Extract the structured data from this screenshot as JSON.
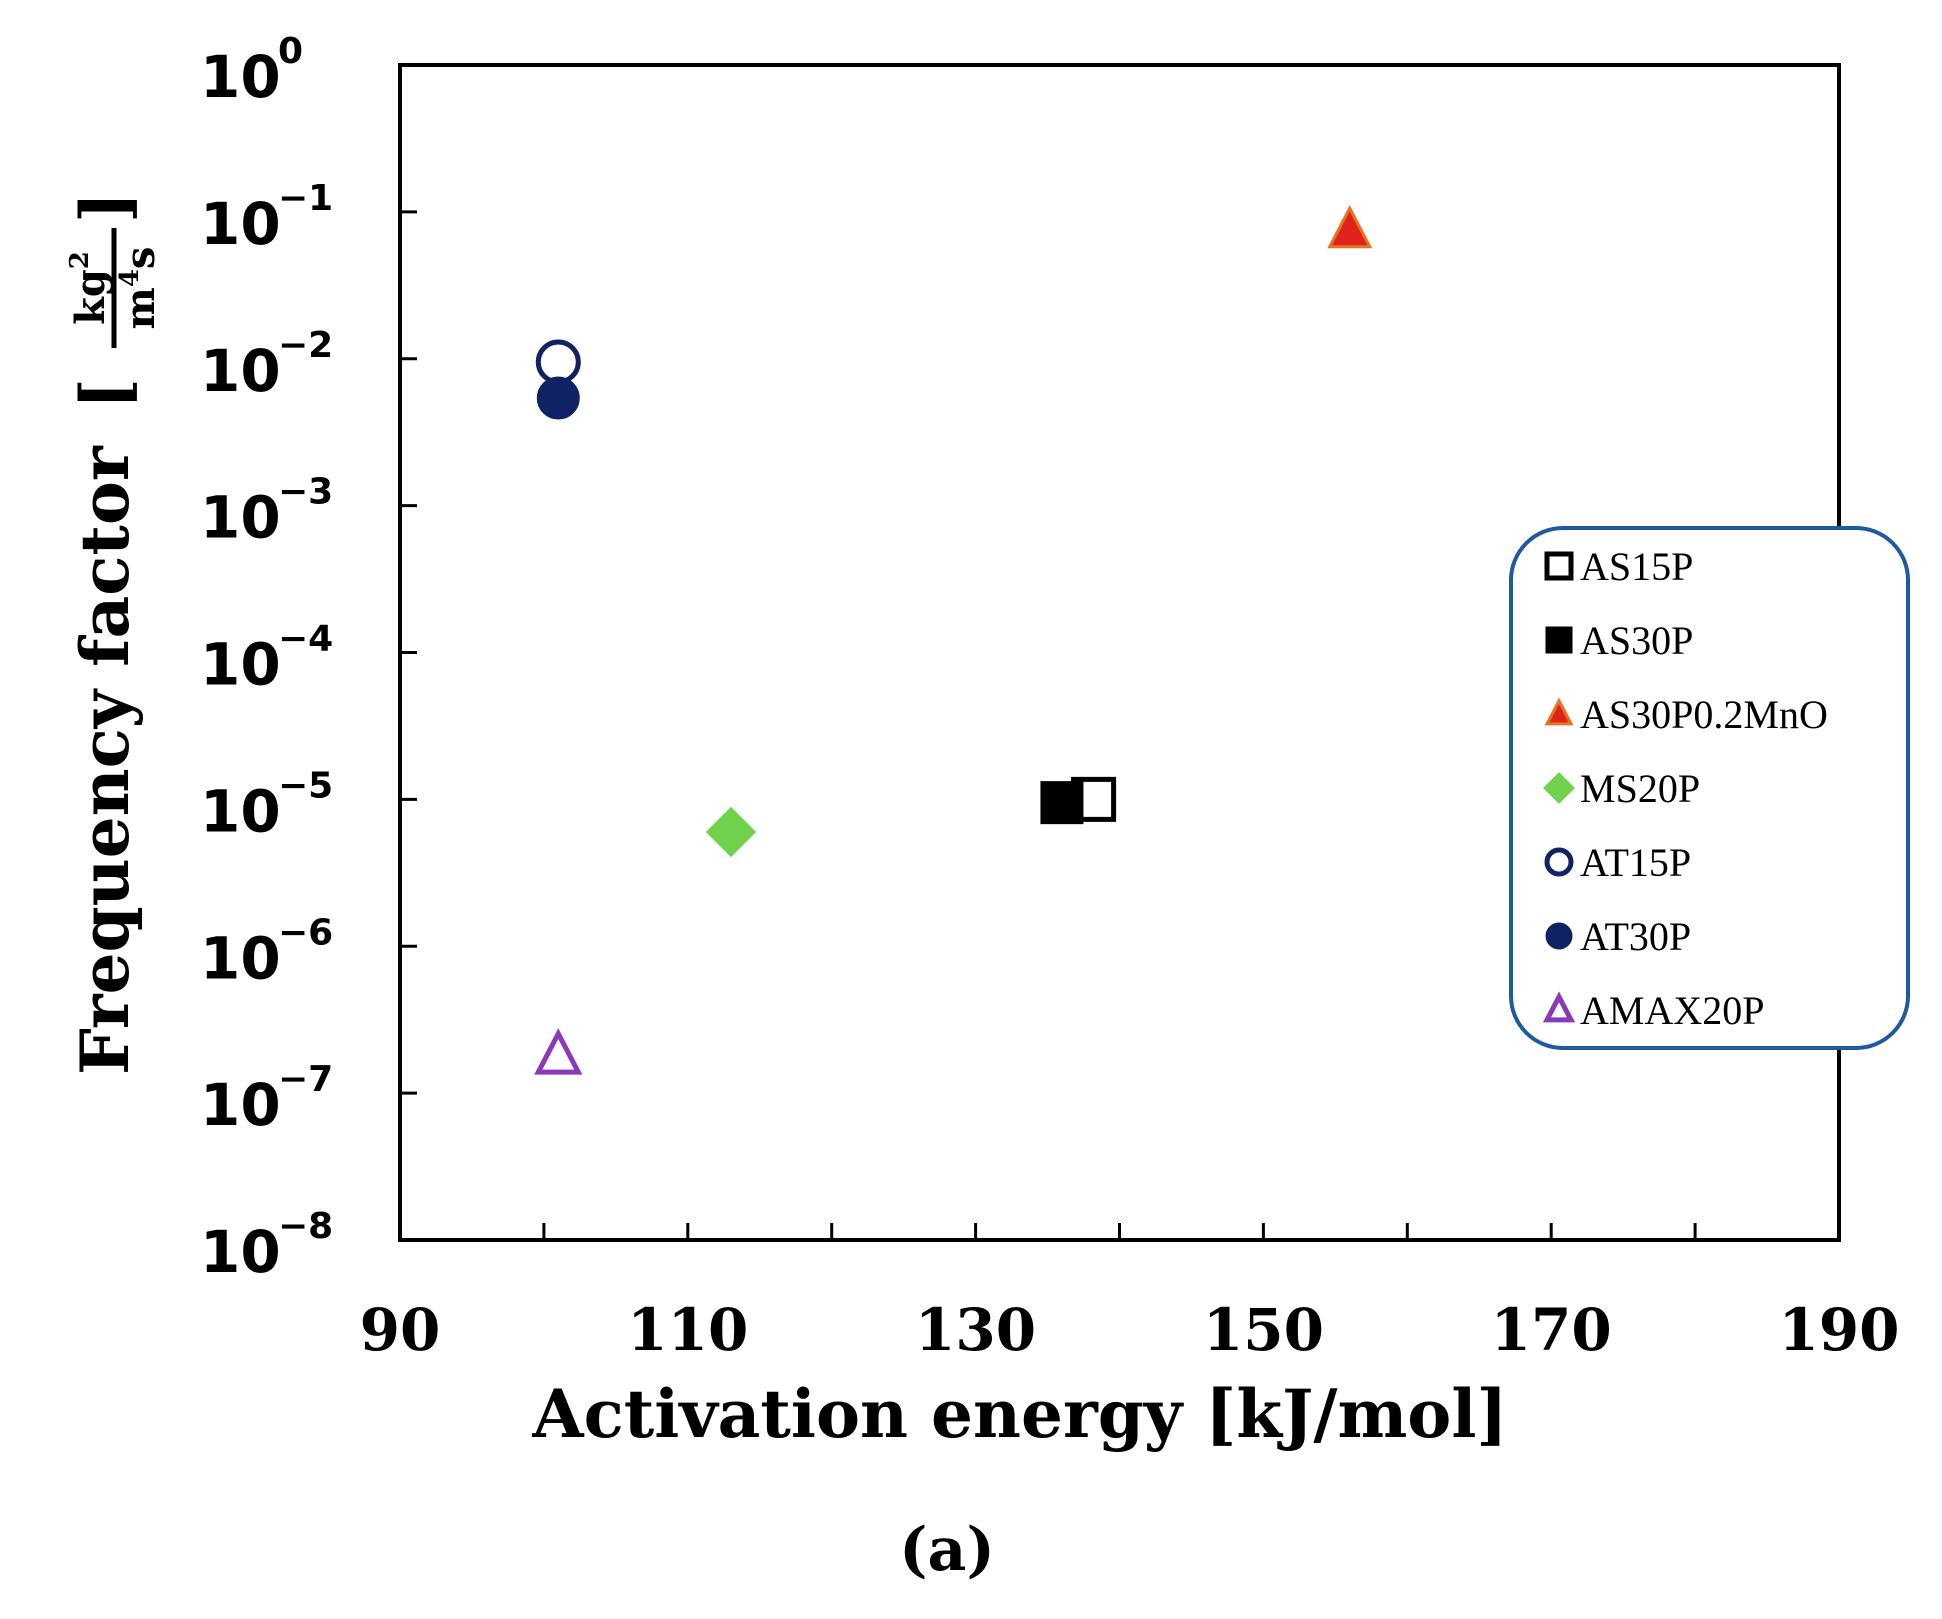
{
  "chart_data": {
    "type": "scatter",
    "panel_label": "(a)",
    "xlabel": "Activation energy [kJ/mol]",
    "ylabel": {
      "text": "Frequency factor",
      "unit_open": "[",
      "unit_num_base": "kg",
      "unit_num_exp": "2",
      "unit_den_base": "m",
      "unit_den_exp": "4",
      "unit_den_tail": "s",
      "unit_close": "]"
    },
    "xlim": [
      90,
      190
    ],
    "x_ticks": [
      90,
      110,
      130,
      150,
      170,
      190
    ],
    "x_minor_ticks": [
      100,
      120,
      140,
      160,
      180
    ],
    "y_scale": "log",
    "ylim": [
      1e-08,
      1
    ],
    "y_ticks": [
      {
        "value": 1,
        "base": "10",
        "exp": "0"
      },
      {
        "value": 0.1,
        "base": "10",
        "exp": "−1"
      },
      {
        "value": 0.01,
        "base": "10",
        "exp": "−2"
      },
      {
        "value": 0.001,
        "base": "10",
        "exp": "−3"
      },
      {
        "value": 0.0001,
        "base": "10",
        "exp": "−4"
      },
      {
        "value": 1e-05,
        "base": "10",
        "exp": "−5"
      },
      {
        "value": 1e-06,
        "base": "10",
        "exp": "−6"
      },
      {
        "value": 1e-07,
        "base": "10",
        "exp": "−7"
      },
      {
        "value": 1e-08,
        "base": "10",
        "exp": "−8"
      }
    ],
    "legend_position": "right",
    "series": [
      {
        "name": "AS15P",
        "marker": "square",
        "filled": false,
        "color": "#000000",
        "fill": "#ffffff",
        "x": 138.2,
        "y": 1e-05
      },
      {
        "name": "AS30P",
        "marker": "square",
        "filled": true,
        "color": "#000000",
        "fill": "#000000",
        "x": 136.0,
        "y": 9.5e-06
      },
      {
        "name": "AS30P0.2MnO",
        "marker": "triangle",
        "filled": true,
        "color": "#e8731f",
        "fill": "#e0221c",
        "x": 156.0,
        "y": 0.075
      },
      {
        "name": "MS20P",
        "marker": "diamond",
        "filled": true,
        "color": "#6fd24a",
        "fill": "#6fd24a",
        "x": 113.0,
        "y": 6e-06
      },
      {
        "name": "AT15P",
        "marker": "circle",
        "filled": false,
        "color": "#0e2264",
        "fill": "#ffffff",
        "x": 101.0,
        "y": 0.0095
      },
      {
        "name": "AT30P",
        "marker": "circle",
        "filled": true,
        "color": "#0e2264",
        "fill": "#0e2264",
        "x": 101.0,
        "y": 0.0054
      },
      {
        "name": "AMAX20P",
        "marker": "triangle",
        "filled": false,
        "color": "#8a3ab9",
        "fill": "#ffffff",
        "x": 101.0,
        "y": 1.8e-07
      }
    ],
    "legend_border_color": "#1f5aa0"
  }
}
